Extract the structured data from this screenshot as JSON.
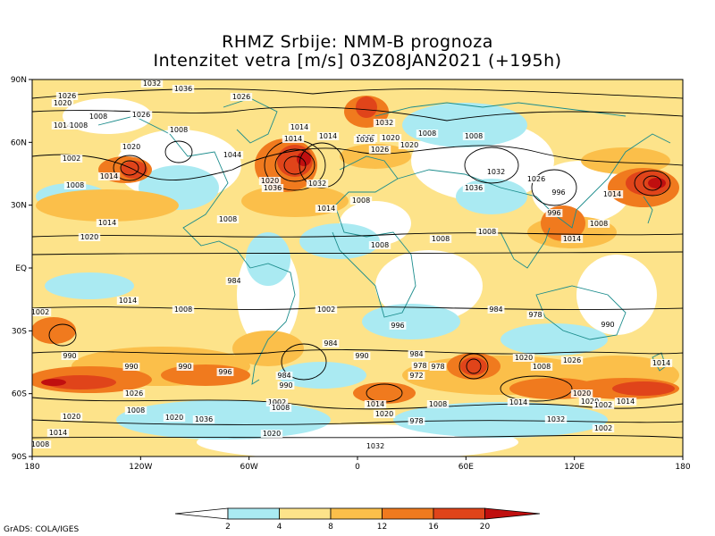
{
  "header": {
    "line1": "RHMZ Srbije: NMM-B prognoza",
    "line2": "Intenzitet vetra [m/s] 03Z08JAN2021 (+195h)"
  },
  "axes": {
    "x_ticks": [
      "180",
      "120W",
      "60W",
      "0",
      "60E",
      "120E",
      "180"
    ],
    "y_ticks": [
      "90N",
      "60N",
      "30N",
      "EQ",
      "30S",
      "60S",
      "90S"
    ]
  },
  "legend": {
    "values": [
      "2",
      "4",
      "8",
      "12",
      "16",
      "20"
    ],
    "colors": [
      "#ffffff",
      "#aaeaf2",
      "#fde38a",
      "#fbbf4a",
      "#f07a1e",
      "#e0441a",
      "#c00f0f"
    ]
  },
  "isobar_labels": [
    "1026",
    "1032",
    "1036",
    "1026",
    "1020",
    "1008",
    "1026",
    "1014",
    "1008",
    "1008",
    "1014",
    "1032",
    "1002",
    "1020",
    "1008",
    "1026",
    "1020",
    "1014",
    "1014",
    "1008",
    "1020",
    "1026",
    "1002",
    "1032",
    "1014",
    "1008",
    "1020",
    "1036",
    "1044",
    "1032",
    "1036",
    "1026",
    "996",
    "1014",
    "1008",
    "1014",
    "1008",
    "1008",
    "1008",
    "1020",
    "1014",
    "1008",
    "1014",
    "1008",
    "996",
    "984",
    "1002",
    "1008",
    "1014",
    "1002",
    "996",
    "984",
    "978",
    "990",
    "990",
    "984",
    "990",
    "978",
    "972",
    "978",
    "984",
    "990",
    "990",
    "996",
    "984",
    "990",
    "1002",
    "1008",
    "1014",
    "1020",
    "1008",
    "978",
    "1014",
    "1020",
    "1008",
    "1026",
    "1032",
    "1002",
    "1020",
    "1014",
    "1020",
    "1036",
    "1020",
    "1008",
    "1032",
    "1026",
    "1008",
    "1014",
    "1014",
    "1020",
    "1020",
    "1002"
  ],
  "credit": "GrADS: COLA/IGES"
}
